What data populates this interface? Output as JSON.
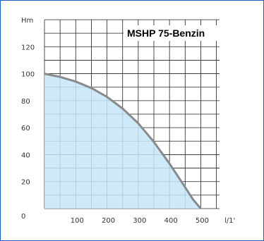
{
  "chart_data": {
    "type": "area",
    "title": "MSHP 75-Benzin",
    "ylabel": "Hm",
    "xlabel": "l/1'",
    "x": [
      0,
      50,
      100,
      150,
      200,
      250,
      300,
      350,
      400,
      450,
      475,
      500
    ],
    "y": [
      100,
      97.6,
      94.2,
      89.4,
      82.8,
      74.2,
      63.2,
      49.4,
      33.4,
      15.8,
      6.8,
      0
    ],
    "xlim": [
      0,
      560
    ],
    "ylim": [
      0,
      140
    ],
    "x_ticks": [
      "100",
      "200",
      "300",
      "400",
      "500"
    ],
    "x_tick_values": [
      100,
      200,
      300,
      400,
      500
    ],
    "y_ticks": [
      "0",
      "20",
      "40",
      "60",
      "80",
      "100",
      "120"
    ],
    "y_tick_values": [
      0,
      20,
      40,
      60,
      80,
      100,
      120
    ],
    "grid": true,
    "colors": {
      "fill": "#c6e6f7",
      "curve": "#8a8a8a",
      "grid": "#222222",
      "frame": "#1f5fbf"
    }
  }
}
